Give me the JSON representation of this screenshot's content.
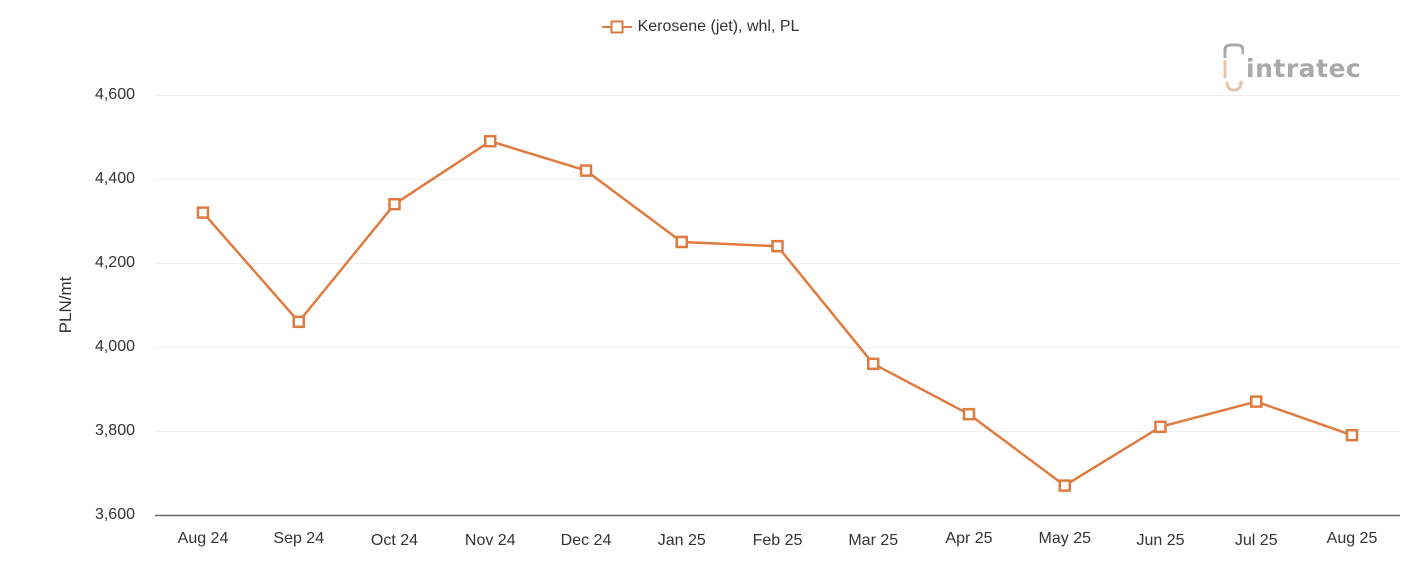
{
  "legend": {
    "label": "Kerosene (jet), whl, PL",
    "icon": "square-marker-line-icon"
  },
  "logo": {
    "text": "intratec"
  },
  "axis": {
    "ylabel": "PLN/mt",
    "yticks": [
      "4,600",
      "4,400",
      "4,200",
      "4,000",
      "3,800",
      "3,600"
    ],
    "xticks": [
      "Aug 24",
      "Sep 24",
      "Oct 24",
      "Nov 24",
      "Dec 24",
      "Jan 25",
      "Feb 25",
      "Mar 25",
      "Apr 25",
      "May 25",
      "Jun 25",
      "Jul 25",
      "Aug 25"
    ]
  },
  "colors": {
    "series": "#e07b3f",
    "grid": "#eeeeee",
    "axis": "#666666",
    "logo_gray": "#a9a9a9",
    "logo_peach": "#e8c4a8"
  },
  "chart_data": {
    "type": "line",
    "title": "",
    "xlabel": "",
    "ylabel": "PLN/mt",
    "ylim": [
      3600,
      4600
    ],
    "grid": true,
    "legend_position": "top",
    "categories": [
      "Aug 24",
      "Sep 24",
      "Oct 24",
      "Nov 24",
      "Dec 24",
      "Jan 25",
      "Feb 25",
      "Mar 25",
      "Apr 25",
      "May 25",
      "Jun 25",
      "Jul 25",
      "Aug 25"
    ],
    "series": [
      {
        "name": "Kerosene (jet), whl, PL",
        "values": [
          4320,
          4060,
          4340,
          4490,
          4420,
          4250,
          4240,
          3960,
          3840,
          3670,
          3810,
          3870,
          3790
        ]
      }
    ]
  }
}
